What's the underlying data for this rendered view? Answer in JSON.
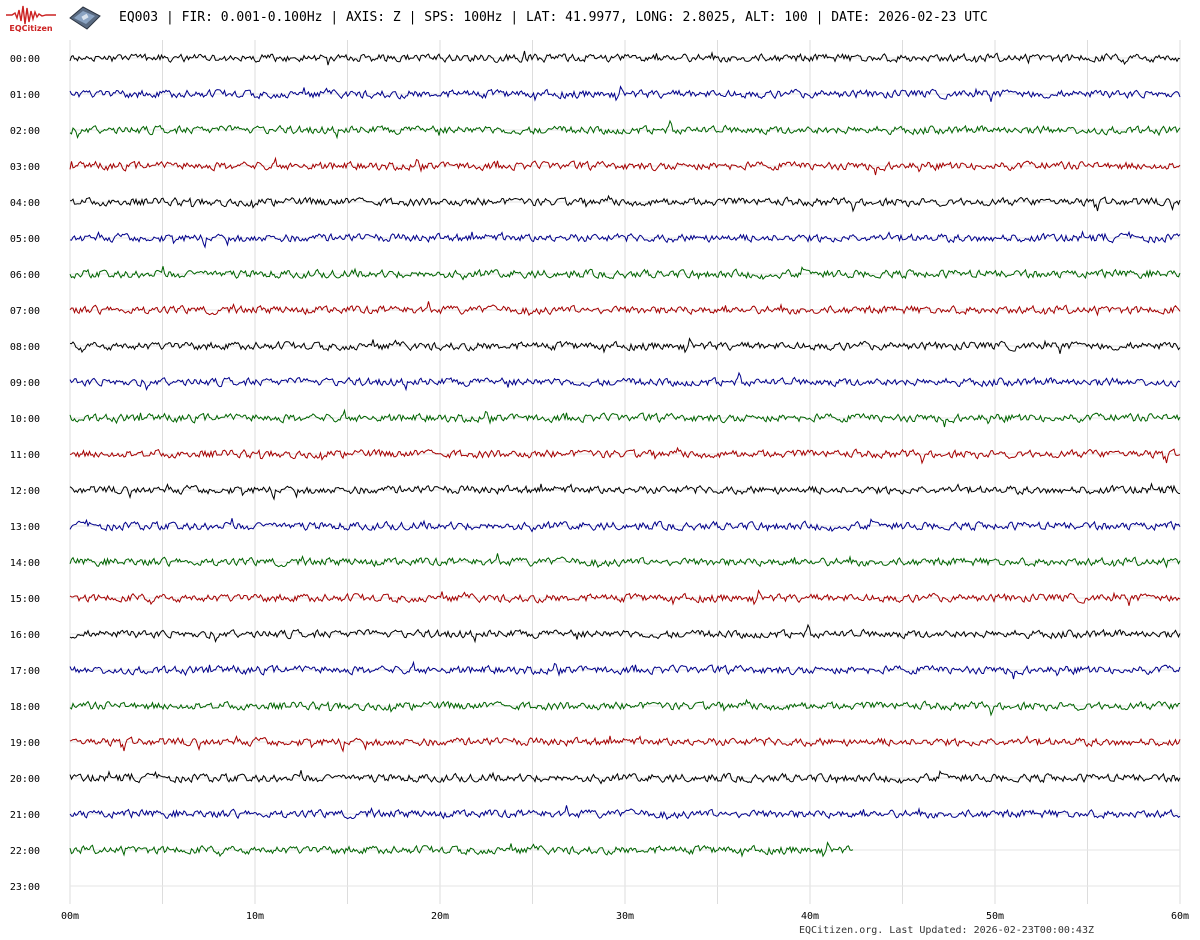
{
  "logo": {
    "text": "EQCitizen",
    "color": "#cc2222"
  },
  "device_icon": "seismometer-device-icon",
  "header": {
    "text": "EQ003 | FIR: 0.001-0.100Hz | AXIS: Z | SPS: 100Hz | LAT: 41.9977, LONG: 2.8025, ALT: 100 | DATE: 2026-02-23 UTC"
  },
  "footer": {
    "text": "EQCitizen.org. Last Updated: 2026-02-23T00:00:43Z"
  },
  "chart_data": {
    "type": "line",
    "title": "",
    "xlabel": "",
    "ylabel": "",
    "x_ticks": [
      "00m",
      "10m",
      "20m",
      "30m",
      "40m",
      "50m",
      "60m"
    ],
    "x_tick_values": [
      0,
      10,
      20,
      30,
      40,
      50,
      60
    ],
    "xlim": [
      0,
      60
    ],
    "x_grid_step": 5,
    "grid": true,
    "row_labels": [
      "00:00",
      "01:00",
      "02:00",
      "03:00",
      "04:00",
      "05:00",
      "06:00",
      "07:00",
      "08:00",
      "09:00",
      "10:00",
      "11:00",
      "12:00",
      "13:00",
      "14:00",
      "15:00",
      "16:00",
      "17:00",
      "18:00",
      "19:00",
      "20:00",
      "21:00",
      "22:00",
      "23:00"
    ],
    "trace_colors": [
      "#000000",
      "#00008b",
      "#006400",
      "#a50000"
    ],
    "trace_end_minutes": [
      60,
      60,
      60,
      60,
      60,
      60,
      60,
      60,
      60,
      60,
      60,
      60,
      60,
      60,
      60,
      60,
      60,
      60,
      60,
      60,
      60,
      60,
      42.4,
      0
    ]
  }
}
